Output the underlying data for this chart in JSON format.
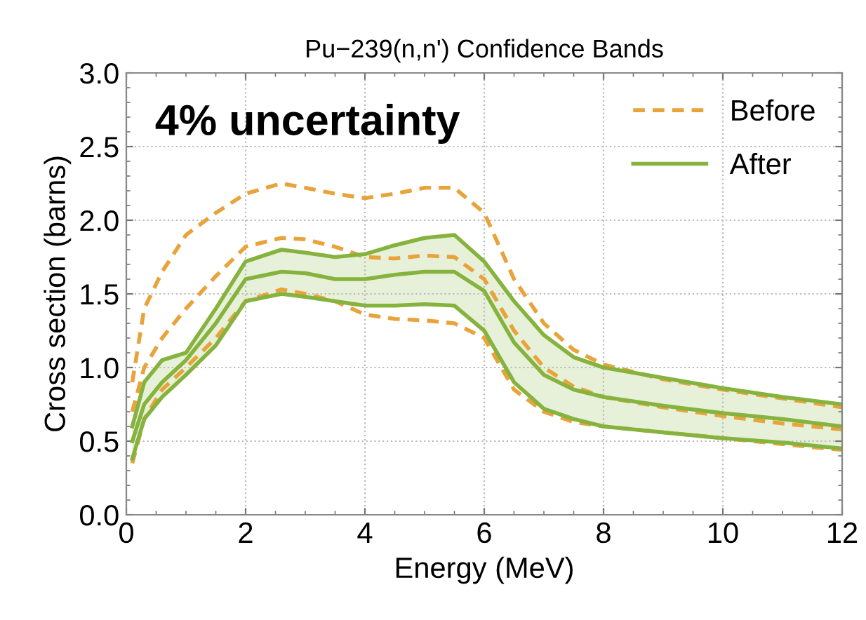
{
  "chart_data": {
    "type": "line",
    "title": "Pu−239(n,n') Confidence Bands",
    "xlabel": "Energy (MeV)",
    "ylabel": "Cross section (barns)",
    "annotations": [
      "4% uncertainty"
    ],
    "x": [
      0.1,
      0.3,
      0.6,
      1,
      1.5,
      2,
      2.6,
      3,
      3.5,
      4,
      4.5,
      5,
      5.5,
      6,
      6.5,
      7,
      7.5,
      8,
      9,
      10,
      11,
      12
    ],
    "series": [
      {
        "name": "Before",
        "color": "#e8a33a",
        "line_style": "dashed",
        "values": [
          0.7,
          1.0,
          1.2,
          1.4,
          1.62,
          1.82,
          1.88,
          1.87,
          1.82,
          1.75,
          1.74,
          1.76,
          1.75,
          1.6,
          1.25,
          1.0,
          0.87,
          0.8,
          0.73,
          0.67,
          0.62,
          0.58
        ]
      },
      {
        "color": "#e8a33a",
        "line_style": "dashed",
        "values": [
          0.9,
          1.4,
          1.65,
          1.9,
          2.05,
          2.18,
          2.25,
          2.22,
          2.18,
          2.15,
          2.18,
          2.22,
          2.22,
          2.05,
          1.6,
          1.3,
          1.12,
          1.02,
          0.92,
          0.85,
          0.79,
          0.73
        ]
      },
      {
        "color": "#e8a33a",
        "line_style": "dashed",
        "values": [
          0.35,
          0.65,
          0.85,
          1.0,
          1.2,
          1.45,
          1.53,
          1.5,
          1.45,
          1.36,
          1.33,
          1.32,
          1.3,
          1.2,
          0.85,
          0.7,
          0.63,
          0.6,
          0.56,
          0.52,
          0.48,
          0.44
        ]
      },
      {
        "color": "#86b33e",
        "line_style": "solid",
        "values": [
          0.38,
          0.65,
          0.8,
          0.95,
          1.15,
          1.45,
          1.5,
          1.48,
          1.45,
          1.42,
          1.42,
          1.43,
          1.42,
          1.25,
          0.9,
          0.72,
          0.65,
          0.6,
          0.56,
          0.52,
          0.49,
          0.45
        ]
      },
      {
        "color": "#86b33e",
        "line_style": "solid",
        "values": [
          0.6,
          0.9,
          1.05,
          1.1,
          1.4,
          1.72,
          1.8,
          1.78,
          1.75,
          1.77,
          1.83,
          1.88,
          1.9,
          1.72,
          1.45,
          1.22,
          1.07,
          1.0,
          0.93,
          0.86,
          0.8,
          0.75
        ]
      },
      {
        "name": "After",
        "color": "#86b33e",
        "line_style": "solid",
        "values": [
          0.5,
          0.75,
          0.9,
          1.05,
          1.3,
          1.6,
          1.65,
          1.64,
          1.6,
          1.6,
          1.63,
          1.65,
          1.65,
          1.52,
          1.17,
          0.95,
          0.85,
          0.8,
          0.74,
          0.69,
          0.65,
          0.6
        ],
        "lower": [
          0.38,
          0.65,
          0.8,
          0.95,
          1.15,
          1.45,
          1.5,
          1.48,
          1.45,
          1.42,
          1.42,
          1.43,
          1.42,
          1.25,
          0.9,
          0.72,
          0.65,
          0.6,
          0.56,
          0.52,
          0.49,
          0.45
        ],
        "upper": [
          0.6,
          0.9,
          1.05,
          1.1,
          1.4,
          1.72,
          1.8,
          1.78,
          1.75,
          1.77,
          1.83,
          1.88,
          1.9,
          1.72,
          1.45,
          1.22,
          1.07,
          1.0,
          0.93,
          0.86,
          0.8,
          0.75
        ]
      }
    ],
    "xlim": [
      0,
      12
    ],
    "xticks": [
      0,
      2,
      4,
      6,
      8,
      10,
      12
    ],
    "ylim": [
      0,
      3.0
    ],
    "yticks": [
      {
        "value": 0,
        "label": "0.0"
      },
      0.5,
      {
        "value": 1,
        "label": "1.0"
      },
      1.5,
      {
        "value": 2,
        "label": "2.0"
      },
      2.5,
      {
        "value": 3,
        "label": "3.0"
      }
    ],
    "grid": true,
    "legend": "top right",
    "marker": "none"
  }
}
